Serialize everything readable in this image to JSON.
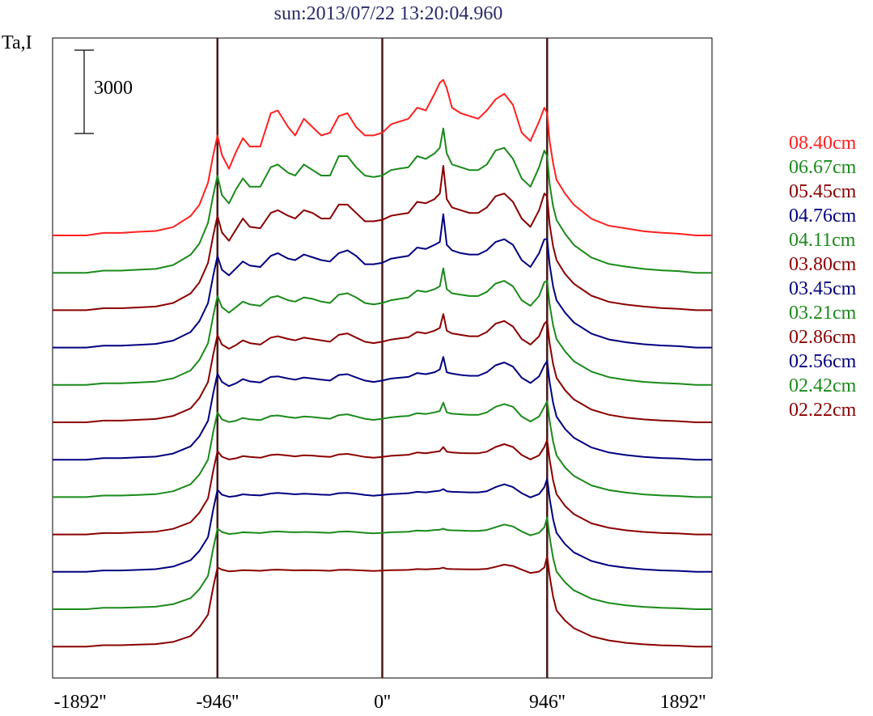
{
  "chart_data": {
    "type": "line",
    "title": "sun:2013/07/22 13:20:04.960",
    "ylabel": "Ta,I",
    "scale_bar_label": "3000",
    "xlim": [
      -1892,
      1892
    ],
    "x_ticks": [
      "-1892''",
      "-946''",
      "0''",
      "946''",
      "1892''"
    ],
    "vertical_lines_at": [
      -946,
      0,
      946
    ],
    "stacked_profiles": true,
    "x": [
      -1892,
      -1800,
      -1700,
      -1600,
      -1500,
      -1400,
      -1300,
      -1200,
      -1100,
      -1050,
      -1000,
      -970,
      -946,
      -920,
      -880,
      -840,
      -800,
      -760,
      -700,
      -640,
      -600,
      -540,
      -500,
      -450,
      -400,
      -350,
      -300,
      -250,
      -200,
      -150,
      -100,
      -50,
      0,
      50,
      100,
      150,
      200,
      250,
      300,
      330,
      350,
      370,
      400,
      450,
      500,
      550,
      600,
      650,
      700,
      750,
      800,
      850,
      900,
      930,
      946,
      960,
      980,
      1000,
      1050,
      1100,
      1200,
      1300,
      1400,
      1500,
      1600,
      1700,
      1800,
      1892
    ],
    "series": [
      {
        "name": "08.40cm",
        "color": "#ff2020",
        "values": [
          0,
          0,
          0,
          90,
          90,
          130,
          160,
          300,
          700,
          1100,
          1900,
          2900,
          3600,
          2900,
          2400,
          3000,
          3500,
          3200,
          3200,
          4400,
          4500,
          3900,
          3600,
          4200,
          3900,
          3600,
          3700,
          4300,
          4400,
          3900,
          3600,
          3600,
          3700,
          4000,
          4100,
          4200,
          4600,
          4500,
          5100,
          5500,
          5600,
          5300,
          4600,
          4400,
          4300,
          4200,
          4500,
          4900,
          5100,
          4700,
          3700,
          3400,
          4100,
          4600,
          4400,
          3400,
          2600,
          2000,
          1500,
          1100,
          600,
          350,
          250,
          150,
          100,
          60,
          0,
          0
        ]
      },
      {
        "name": "06.67cm",
        "color": "#1a8a1a",
        "values": [
          0,
          0,
          0,
          80,
          80,
          110,
          140,
          280,
          650,
          1050,
          1800,
          2800,
          3500,
          2800,
          2500,
          3000,
          3400,
          3100,
          3100,
          3800,
          3900,
          3600,
          3500,
          3900,
          3700,
          3500,
          3500,
          4200,
          4200,
          3800,
          3500,
          3450,
          3500,
          3700,
          3750,
          3800,
          4200,
          4100,
          4300,
          4500,
          5200,
          4300,
          3900,
          3800,
          3700,
          3700,
          3900,
          4400,
          4500,
          4100,
          3400,
          3100,
          3800,
          4400,
          4200,
          3200,
          2400,
          1900,
          1400,
          1000,
          550,
          320,
          220,
          140,
          90,
          60,
          0,
          0
        ]
      },
      {
        "name": "05.45cm",
        "color": "#8b0000",
        "values": [
          0,
          0,
          0,
          70,
          70,
          100,
          130,
          260,
          600,
          1000,
          1700,
          2700,
          3400,
          2800,
          2500,
          2900,
          3300,
          3000,
          2950,
          3500,
          3600,
          3400,
          3300,
          3600,
          3500,
          3300,
          3300,
          3800,
          3800,
          3500,
          3200,
          3200,
          3250,
          3400,
          3450,
          3500,
          3900,
          3850,
          4000,
          4200,
          5200,
          4000,
          3700,
          3600,
          3500,
          3500,
          3700,
          4100,
          4200,
          3900,
          3300,
          3000,
          3600,
          4200,
          4100,
          3100,
          2300,
          1800,
          1300,
          950,
          520,
          300,
          200,
          130,
          80,
          50,
          0,
          0
        ]
      },
      {
        "name": "04.76cm",
        "color": "#000080",
        "values": [
          0,
          0,
          0,
          70,
          70,
          100,
          130,
          250,
          560,
          950,
          1600,
          2600,
          3300,
          2800,
          2600,
          2850,
          3100,
          2950,
          2900,
          3300,
          3400,
          3200,
          3150,
          3350,
          3250,
          3150,
          3100,
          3400,
          3500,
          3300,
          3000,
          3000,
          3050,
          3200,
          3250,
          3300,
          3600,
          3550,
          3700,
          3800,
          4800,
          3700,
          3500,
          3400,
          3350,
          3350,
          3500,
          3800,
          3900,
          3700,
          3150,
          2900,
          3400,
          3900,
          3900,
          3000,
          2200,
          1700,
          1250,
          900,
          500,
          290,
          190,
          120,
          75,
          50,
          0,
          0
        ]
      },
      {
        "name": "04.11cm",
        "color": "#1a8a1a",
        "values": [
          0,
          0,
          0,
          60,
          60,
          90,
          120,
          240,
          520,
          900,
          1500,
          2500,
          3200,
          2800,
          2600,
          2800,
          3000,
          2900,
          2850,
          3150,
          3200,
          3050,
          3000,
          3150,
          3100,
          3000,
          2950,
          3250,
          3300,
          3150,
          2950,
          2900,
          2950,
          3050,
          3100,
          3150,
          3400,
          3350,
          3450,
          3550,
          4200,
          3450,
          3300,
          3250,
          3200,
          3200,
          3350,
          3650,
          3750,
          3550,
          3050,
          2850,
          3200,
          3700,
          3750,
          2900,
          2150,
          1650,
          1200,
          850,
          480,
          280,
          180,
          110,
          70,
          45,
          0,
          0
        ]
      },
      {
        "name": "03.80cm",
        "color": "#8b0000",
        "values": [
          0,
          0,
          0,
          60,
          60,
          90,
          120,
          230,
          500,
          870,
          1450,
          2450,
          3150,
          2800,
          2650,
          2780,
          2950,
          2850,
          2800,
          3050,
          3100,
          3000,
          2950,
          3050,
          3000,
          2950,
          2900,
          3150,
          3200,
          3050,
          2900,
          2850,
          2900,
          2980,
          3020,
          3060,
          3250,
          3200,
          3300,
          3400,
          3900,
          3300,
          3200,
          3150,
          3100,
          3100,
          3250,
          3550,
          3650,
          3450,
          3000,
          2800,
          3100,
          3550,
          3650,
          2850,
          2100,
          1600,
          1150,
          820,
          460,
          270,
          170,
          105,
          65,
          40,
          0,
          0
        ]
      },
      {
        "name": "03.45cm",
        "color": "#000080",
        "values": [
          0,
          0,
          0,
          55,
          55,
          85,
          110,
          220,
          480,
          840,
          1400,
          2400,
          3100,
          2800,
          2650,
          2750,
          2900,
          2820,
          2780,
          2980,
          3000,
          2920,
          2880,
          2960,
          2920,
          2880,
          2850,
          3050,
          3080,
          2960,
          2850,
          2800,
          2850,
          2920,
          2950,
          2980,
          3120,
          3080,
          3150,
          3250,
          3700,
          3150,
          3100,
          3050,
          3020,
          3020,
          3150,
          3400,
          3500,
          3350,
          2950,
          2760,
          3000,
          3400,
          3550,
          2800,
          2050,
          1550,
          1100,
          790,
          440,
          260,
          165,
          100,
          60,
          40,
          0,
          0
        ]
      },
      {
        "name": "03.21cm",
        "color": "#1a8a1a",
        "values": [
          0,
          0,
          0,
          55,
          55,
          80,
          105,
          210,
          460,
          810,
          1350,
          2350,
          3050,
          2800,
          2700,
          2750,
          2850,
          2800,
          2770,
          2920,
          2940,
          2880,
          2850,
          2900,
          2880,
          2850,
          2820,
          2950,
          2980,
          2900,
          2820,
          2780,
          2820,
          2870,
          2900,
          2920,
          3020,
          2990,
          3050,
          3100,
          3400,
          3050,
          3000,
          2980,
          2960,
          2960,
          3050,
          3250,
          3350,
          3250,
          2900,
          2720,
          2900,
          3250,
          3450,
          2750,
          2000,
          1500,
          1060,
          760,
          420,
          250,
          160,
          95,
          58,
          38,
          0,
          0
        ]
      },
      {
        "name": "02.86cm",
        "color": "#8b0000",
        "values": [
          0,
          0,
          0,
          50,
          50,
          75,
          100,
          200,
          440,
          780,
          1300,
          2300,
          3000,
          2800,
          2700,
          2740,
          2820,
          2790,
          2760,
          2860,
          2880,
          2840,
          2810,
          2850,
          2840,
          2810,
          2790,
          2880,
          2900,
          2850,
          2790,
          2760,
          2790,
          2830,
          2850,
          2870,
          2950,
          2920,
          2970,
          3000,
          3150,
          2980,
          2950,
          2930,
          2920,
          2920,
          2980,
          3150,
          3250,
          3150,
          2860,
          2700,
          2850,
          3150,
          3400,
          2700,
          1950,
          1450,
          1020,
          730,
          400,
          240,
          150,
          90,
          55,
          35,
          0,
          0
        ]
      },
      {
        "name": "02.56cm",
        "color": "#000080",
        "values": [
          0,
          0,
          0,
          50,
          50,
          70,
          95,
          190,
          420,
          750,
          1250,
          2250,
          2950,
          2780,
          2700,
          2730,
          2790,
          2770,
          2750,
          2820,
          2840,
          2810,
          2790,
          2810,
          2800,
          2780,
          2770,
          2830,
          2840,
          2810,
          2770,
          2740,
          2770,
          2800,
          2810,
          2830,
          2880,
          2860,
          2900,
          2920,
          2980,
          2900,
          2880,
          2870,
          2860,
          2860,
          2900,
          3050,
          3150,
          3050,
          2830,
          2680,
          2800,
          3050,
          3350,
          2650,
          1900,
          1400,
          990,
          700,
          390,
          230,
          145,
          88,
          52,
          34,
          0,
          0
        ]
      },
      {
        "name": "02.42cm",
        "color": "#1a8a1a",
        "values": [
          0,
          0,
          0,
          50,
          50,
          70,
          90,
          180,
          400,
          720,
          1200,
          2200,
          2900,
          2780,
          2710,
          2730,
          2770,
          2760,
          2740,
          2790,
          2800,
          2780,
          2770,
          2780,
          2775,
          2760,
          2750,
          2790,
          2800,
          2780,
          2750,
          2730,
          2750,
          2770,
          2780,
          2790,
          2830,
          2820,
          2850,
          2860,
          2900,
          2850,
          2840,
          2830,
          2820,
          2820,
          2850,
          2950,
          3050,
          2980,
          2800,
          2660,
          2750,
          2950,
          3300,
          2600,
          1850,
          1350,
          960,
          680,
          380,
          225,
          140,
          85,
          50,
          33,
          0,
          0
        ]
      },
      {
        "name": "02.22cm",
        "color": "#8b0000",
        "values": [
          0,
          0,
          0,
          50,
          50,
          70,
          90,
          170,
          380,
          700,
          1150,
          2150,
          2850,
          2770,
          2710,
          2725,
          2750,
          2745,
          2730,
          2760,
          2770,
          2755,
          2745,
          2750,
          2748,
          2740,
          2730,
          2760,
          2765,
          2750,
          2735,
          2720,
          2735,
          2750,
          2755,
          2760,
          2790,
          2780,
          2800,
          2810,
          2840,
          2800,
          2790,
          2785,
          2780,
          2780,
          2800,
          2870,
          2950,
          2900,
          2770,
          2650,
          2700,
          2850,
          3250,
          2550,
          1800,
          1300,
          930,
          660,
          370,
          220,
          135,
          82,
          48,
          32,
          0,
          0
        ]
      }
    ]
  }
}
